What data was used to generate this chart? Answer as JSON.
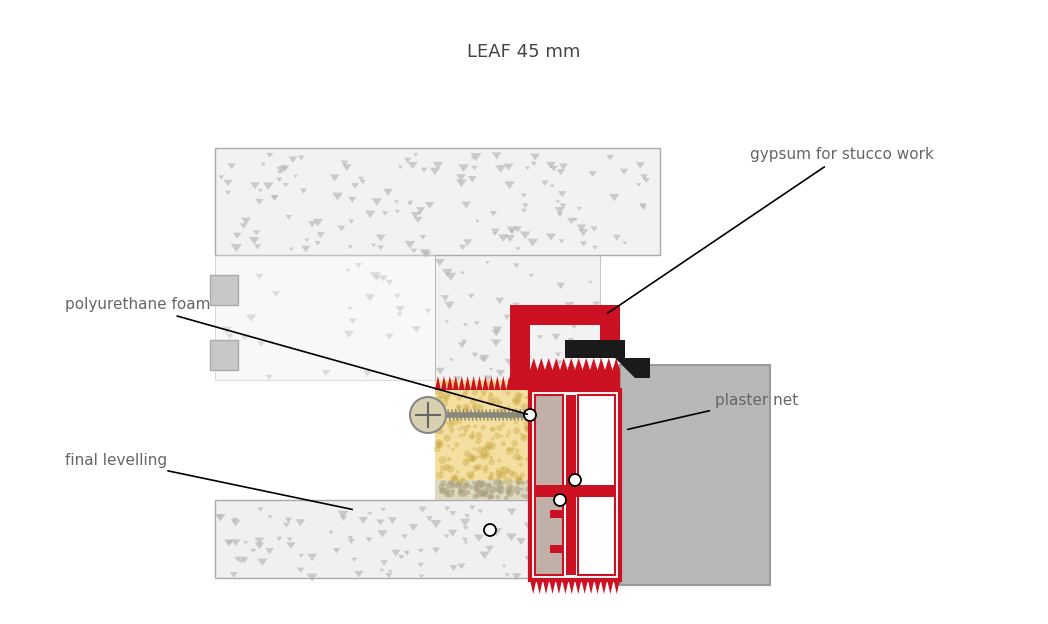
{
  "title": "LEAF 45 mm",
  "title_fontsize": 13,
  "title_color": "#444444",
  "bg_color": "#ffffff",
  "labels": {
    "gypsum": "gypsum for stucco work",
    "polyurethane": "polyurethane foam",
    "final_levelling": "final levelling",
    "plaster_net": "plaster net"
  },
  "label_fontsize": 11,
  "label_color": "#666666",
  "red_color": "#cc1122",
  "concrete_light": "#f0f0f0",
  "concrete_dot": "#b8b8b8",
  "foam_color": "#f5dfa0",
  "foam_dot": "#c8a845",
  "gray_plaster": "#b8b8b8",
  "gravel_color": "#ddd8c0",
  "gravel_dot": "#aaa080",
  "white": "#ffffff",
  "black": "#1a1a1a",
  "mid_gray": "#cccccc",
  "frame_gray1": "#c0b0a8",
  "frame_gray2": "#d8d0c8",
  "screw_color": "#9a8060",
  "plug_color": "#d0d0d0"
}
